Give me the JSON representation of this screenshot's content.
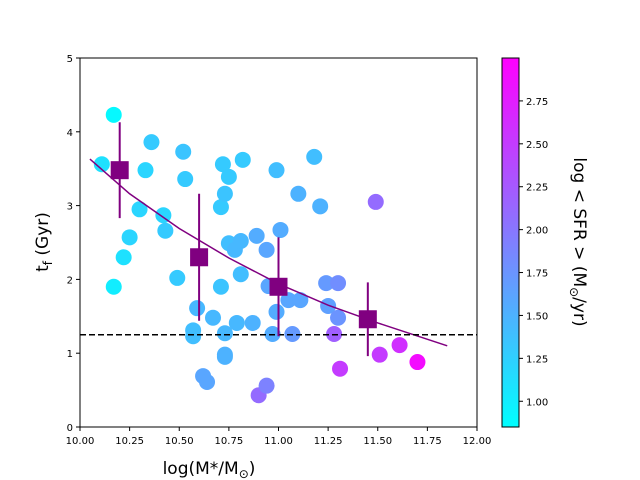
{
  "chart_data": {
    "type": "scatter",
    "xlabel": {
      "text": "log(M*/M",
      "sub": "⊙",
      "end": ")"
    },
    "ylabel": {
      "text": "t",
      "sub": "f",
      "end": " (Gyr)"
    },
    "xlim": [
      10,
      12
    ],
    "ylim": [
      0,
      5
    ],
    "xticks": [
      {
        "value": 10,
        "label": "10.00"
      },
      {
        "value": 10.25,
        "label": "10.25"
      },
      {
        "value": 10.5,
        "label": "10.50"
      },
      {
        "value": 10.75,
        "label": "10.75"
      },
      {
        "value": 11,
        "label": "11.00"
      },
      {
        "value": 11.25,
        "label": "11.25"
      },
      {
        "value": 11.5,
        "label": "11.50"
      },
      {
        "value": 11.75,
        "label": "11.75"
      },
      {
        "value": 12,
        "label": "12.00"
      }
    ],
    "yticks": [
      0,
      1,
      2,
      3,
      4,
      5
    ],
    "points": {
      "x": [
        10.17,
        10.11,
        10.17,
        10.22,
        10.25,
        10.3,
        10.33,
        10.36,
        10.42,
        10.43,
        10.49,
        10.52,
        10.53,
        10.57,
        10.57,
        10.59,
        10.62,
        10.64,
        10.67,
        10.71,
        10.71,
        10.72,
        10.73,
        10.73,
        10.73,
        10.73,
        10.75,
        10.75,
        10.78,
        10.79,
        10.81,
        10.81,
        10.82,
        10.87,
        10.89,
        10.9,
        10.94,
        10.94,
        10.95,
        10.97,
        10.99,
        10.99,
        11.01,
        11.05,
        11.07,
        11.1,
        11.11,
        11.18,
        11.21,
        11.24,
        11.25,
        11.28,
        11.3,
        11.3,
        11.31,
        11.49,
        11.51,
        11.61,
        11.7
      ],
      "values": [
        4.23,
        3.56,
        1.9,
        2.3,
        2.57,
        2.95,
        3.48,
        3.86,
        2.87,
        2.66,
        2.02,
        3.73,
        3.36,
        1.31,
        1.23,
        1.61,
        0.69,
        0.61,
        1.48,
        2.98,
        1.9,
        3.56,
        0.98,
        3.16,
        1.27,
        0.95,
        3.39,
        2.49,
        2.4,
        1.41,
        2.52,
        2.07,
        3.62,
        1.41,
        2.59,
        0.43,
        0.56,
        2.4,
        1.91,
        1.26,
        3.48,
        1.56,
        2.67,
        1.72,
        1.26,
        3.16,
        1.72,
        3.66,
        2.99,
        1.95,
        1.64,
        1.26,
        1.95,
        1.48,
        0.79,
        3.05,
        0.98,
        1.11,
        0.88
      ],
      "c": [
        0.9,
        1.1,
        1.0,
        1.1,
        1.2,
        1.2,
        1.2,
        1.3,
        1.2,
        1.3,
        1.3,
        1.35,
        1.3,
        1.4,
        1.4,
        1.45,
        1.6,
        1.6,
        1.45,
        1.3,
        1.35,
        1.3,
        1.5,
        1.35,
        1.45,
        1.5,
        1.3,
        1.4,
        1.45,
        1.45,
        1.45,
        1.4,
        1.3,
        1.5,
        1.55,
        2.1,
        1.9,
        1.6,
        1.6,
        1.55,
        1.4,
        1.55,
        1.55,
        1.6,
        1.7,
        1.5,
        1.6,
        1.4,
        1.5,
        1.7,
        1.65,
        2.2,
        1.8,
        1.75,
        2.5,
        2.1,
        2.5,
        2.6,
        2.9
      ]
    },
    "binned": {
      "x": [
        10.2,
        10.6,
        11.0,
        11.45
      ],
      "values": [
        3.48,
        2.3,
        1.9,
        1.46
      ],
      "errors": [
        0.65,
        0.86,
        0.67,
        0.5
      ],
      "color": "#800080"
    },
    "fit": {
      "x": [
        10.05,
        10.25,
        10.5,
        10.75,
        11.0,
        11.25,
        11.5,
        11.85
      ],
      "values": [
        3.63,
        3.16,
        2.69,
        2.29,
        1.94,
        1.65,
        1.41,
        1.1
      ],
      "color": "#800080"
    },
    "hline": {
      "value": 1.25,
      "color": "#000000"
    },
    "colorbar": {
      "cmap": [
        "#00ffff",
        "#ff00ff"
      ],
      "clim": [
        0.85,
        3.0
      ],
      "label": {
        "text": "log < SFR > (M",
        "sub": "⊙",
        "end": "/yr)"
      },
      "ticks": [
        {
          "value": 1.0,
          "label": "1.00"
        },
        {
          "value": 1.25,
          "label": "1.25"
        },
        {
          "value": 1.5,
          "label": "1.50"
        },
        {
          "value": 1.75,
          "label": "1.75"
        },
        {
          "value": 2.0,
          "label": "2.00"
        },
        {
          "value": 2.25,
          "label": "2.25"
        },
        {
          "value": 2.5,
          "label": "2.50"
        },
        {
          "value": 2.75,
          "label": "2.75"
        }
      ]
    }
  }
}
